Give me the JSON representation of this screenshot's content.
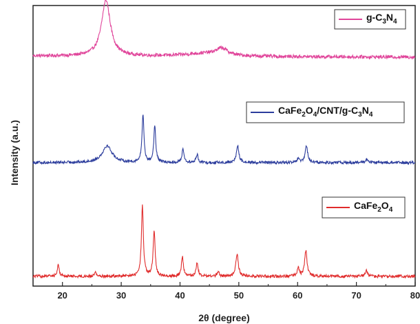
{
  "chart_data": {
    "type": "line",
    "xlabel": "2θ (degree)",
    "ylabel": "Intensity (a.u.)",
    "xlim": [
      15,
      80
    ],
    "xticks": [
      20,
      30,
      40,
      50,
      60,
      70,
      80
    ],
    "y_tick_labels_shown": false,
    "grid": false,
    "series": [
      {
        "name": "g-C3N4",
        "legend_label": {
          "prefix": "g-C",
          "sub1": "3",
          "mid": "N",
          "sub2": "4"
        },
        "color": "#e0449a",
        "offset": 0.78,
        "noise": 0.006,
        "baseline": {
          "a": 0.04,
          "b": -0.004
        },
        "peaks": [
          {
            "x": 27.4,
            "height": 0.2,
            "width": 0.9
          },
          {
            "x": 47.1,
            "height": 0.025,
            "width": 1.2
          },
          {
            "x": 44.0,
            "height": 0.01,
            "width": 4.0
          }
        ]
      },
      {
        "name": "CaFe2O4/CNT/g-C3N4",
        "legend_label": {
          "prefix": "CaFe",
          "sub1": "2",
          "mid": "O",
          "sub2": "4",
          "tail": "/CNT/g-C",
          "sub3": "3",
          "mid2": "N",
          "sub4": "4"
        },
        "color": "#2b3c9c",
        "offset": 0.43,
        "noise": 0.005,
        "baseline": {
          "a": 0.01,
          "b": 0.0
        },
        "peaks": [
          {
            "x": 27.6,
            "height": 0.06,
            "width": 1.0
          },
          {
            "x": 33.7,
            "height": 0.17,
            "width": 0.2
          },
          {
            "x": 35.7,
            "height": 0.13,
            "width": 0.2
          },
          {
            "x": 40.5,
            "height": 0.05,
            "width": 0.2
          },
          {
            "x": 42.9,
            "height": 0.03,
            "width": 0.2
          },
          {
            "x": 49.8,
            "height": 0.06,
            "width": 0.25
          },
          {
            "x": 61.5,
            "height": 0.06,
            "width": 0.25
          },
          {
            "x": 60.1,
            "height": 0.015,
            "width": 0.2
          },
          {
            "x": 71.8,
            "height": 0.015,
            "width": 0.2
          }
        ]
      },
      {
        "name": "CaFe2O4",
        "legend_label": {
          "prefix": "CaFe",
          "sub1": "2",
          "mid": "O",
          "sub2": "4"
        },
        "color": "#e02b2b",
        "offset": 0.03,
        "noise": 0.005,
        "baseline": {
          "a": 0.005,
          "b": 0.0
        },
        "peaks": [
          {
            "x": 19.3,
            "height": 0.04,
            "width": 0.2
          },
          {
            "x": 25.6,
            "height": 0.015,
            "width": 0.2
          },
          {
            "x": 33.6,
            "height": 0.25,
            "width": 0.2
          },
          {
            "x": 35.6,
            "height": 0.16,
            "width": 0.2
          },
          {
            "x": 40.4,
            "height": 0.07,
            "width": 0.2
          },
          {
            "x": 42.9,
            "height": 0.05,
            "width": 0.2
          },
          {
            "x": 46.5,
            "height": 0.015,
            "width": 0.2
          },
          {
            "x": 49.7,
            "height": 0.08,
            "width": 0.25
          },
          {
            "x": 60.1,
            "height": 0.03,
            "width": 0.2
          },
          {
            "x": 61.4,
            "height": 0.09,
            "width": 0.25
          },
          {
            "x": 71.7,
            "height": 0.02,
            "width": 0.2
          }
        ]
      }
    ]
  }
}
